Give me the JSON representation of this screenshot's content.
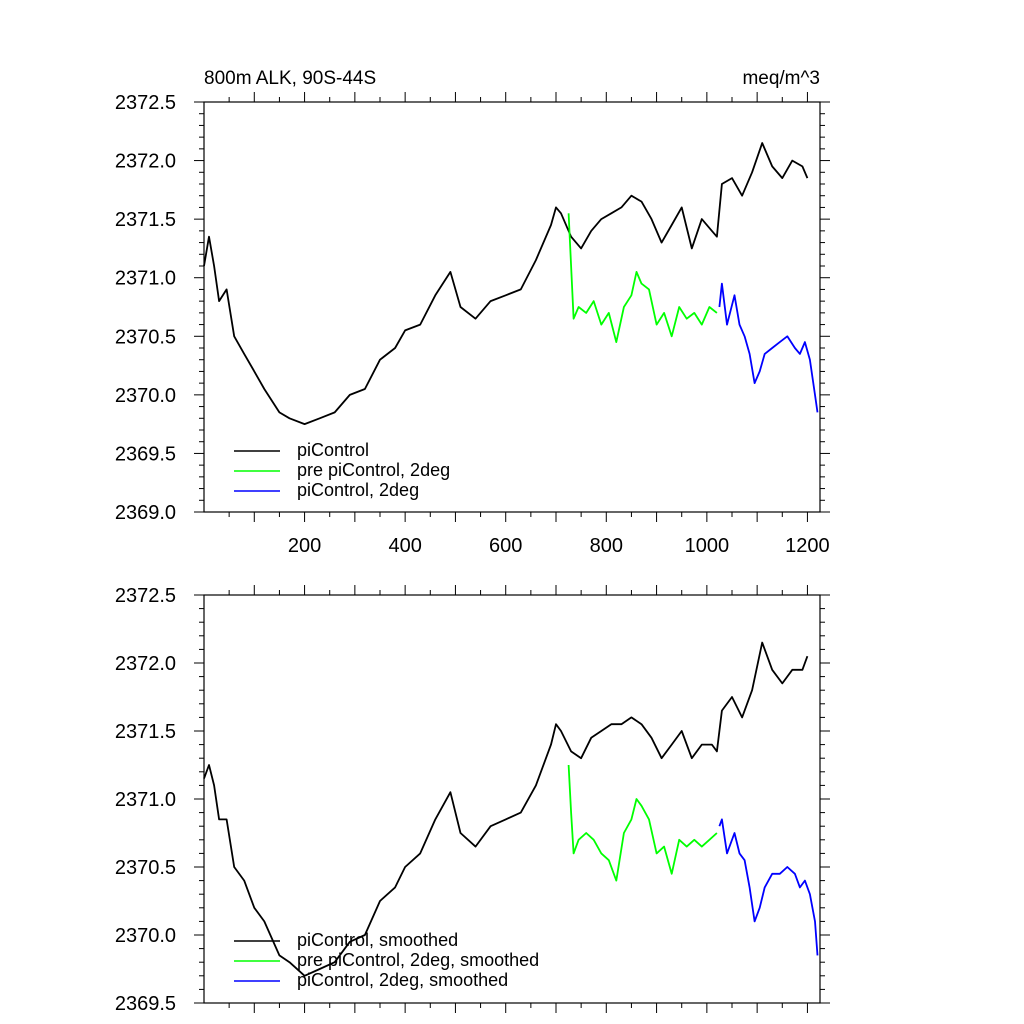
{
  "chart_data": [
    {
      "type": "line",
      "title": "800m ALK, 90S-44S",
      "units": "meq/m^3",
      "xlim": [
        0,
        1225
      ],
      "ylim": [
        2369.0,
        2372.5
      ],
      "xticks": [
        200,
        400,
        600,
        800,
        1000,
        1200
      ],
      "xtick_labels": [
        "200",
        "400",
        "600",
        "800",
        "1000",
        "1200"
      ],
      "yticks": [
        2369.0,
        2369.5,
        2370.0,
        2370.5,
        2371.0,
        2371.5,
        2372.0,
        2372.5
      ],
      "ytick_labels": [
        "2369.0",
        "2369.5",
        "2370.0",
        "2370.5",
        "2371.0",
        "2371.5",
        "2372.0",
        "2372.5"
      ],
      "legend_position": "bottom-left",
      "series": [
        {
          "name": "piControl",
          "color": "#000000",
          "x": [
            0,
            10,
            20,
            30,
            45,
            60,
            80,
            100,
            120,
            150,
            170,
            200,
            230,
            260,
            290,
            320,
            350,
            380,
            400,
            430,
            460,
            490,
            510,
            540,
            570,
            600,
            630,
            660,
            690,
            700,
            710,
            730,
            750,
            770,
            790,
            810,
            830,
            850,
            870,
            890,
            910,
            930,
            950,
            970,
            990,
            1010,
            1020,
            1030,
            1050,
            1070,
            1090,
            1110,
            1130,
            1150,
            1170,
            1190,
            1200
          ],
          "y": [
            2371.1,
            2371.35,
            2371.1,
            2370.8,
            2370.9,
            2370.5,
            2370.35,
            2370.2,
            2370.05,
            2369.85,
            2369.8,
            2369.75,
            2369.8,
            2369.85,
            2370.0,
            2370.05,
            2370.3,
            2370.4,
            2370.55,
            2370.6,
            2370.85,
            2371.05,
            2370.75,
            2370.65,
            2370.8,
            2370.85,
            2370.9,
            2371.15,
            2371.45,
            2371.6,
            2371.55,
            2371.35,
            2371.25,
            2371.4,
            2371.5,
            2371.55,
            2371.6,
            2371.7,
            2371.65,
            2371.5,
            2371.3,
            2371.45,
            2371.6,
            2371.25,
            2371.5,
            2371.4,
            2371.35,
            2371.8,
            2371.85,
            2371.7,
            2371.9,
            2372.15,
            2371.95,
            2371.85,
            2372.0,
            2371.95,
            2371.85
          ]
        },
        {
          "name": "pre piControl, 2deg",
          "color": "#00ff00",
          "x": [
            725,
            730,
            735,
            745,
            760,
            775,
            790,
            805,
            820,
            835,
            850,
            860,
            870,
            885,
            900,
            915,
            930,
            945,
            960,
            975,
            990,
            1005,
            1020
          ],
          "y": [
            2371.55,
            2371.1,
            2370.65,
            2370.75,
            2370.7,
            2370.8,
            2370.6,
            2370.7,
            2370.45,
            2370.75,
            2370.85,
            2371.05,
            2370.95,
            2370.9,
            2370.6,
            2370.7,
            2370.5,
            2370.75,
            2370.65,
            2370.7,
            2370.6,
            2370.75,
            2370.7
          ]
        },
        {
          "name": "piControl, 2deg",
          "color": "#0000ff",
          "x": [
            1025,
            1030,
            1040,
            1055,
            1065,
            1075,
            1085,
            1095,
            1105,
            1115,
            1130,
            1145,
            1160,
            1175,
            1185,
            1195,
            1205,
            1215,
            1220
          ],
          "y": [
            2370.75,
            2370.95,
            2370.6,
            2370.85,
            2370.6,
            2370.5,
            2370.35,
            2370.1,
            2370.2,
            2370.35,
            2370.4,
            2370.45,
            2370.5,
            2370.4,
            2370.35,
            2370.45,
            2370.3,
            2370.0,
            2369.85
          ]
        }
      ]
    },
    {
      "type": "line",
      "title": "",
      "units": "",
      "xlim": [
        0,
        1225
      ],
      "ylim": [
        2369.5,
        2372.5
      ],
      "xticks": [
        200,
        400,
        600,
        800,
        1000,
        1200
      ],
      "yticks": [
        2369.5,
        2370.0,
        2370.5,
        2371.0,
        2371.5,
        2372.0,
        2372.5
      ],
      "ytick_labels": [
        "2369.5",
        "2370.0",
        "2370.5",
        "2371.0",
        "2371.5",
        "2372.0",
        "2372.5"
      ],
      "legend_position": "bottom-left",
      "series": [
        {
          "name": "piControl, smoothed",
          "color": "#000000",
          "x": [
            0,
            10,
            20,
            30,
            45,
            60,
            80,
            100,
            120,
            150,
            170,
            200,
            230,
            260,
            290,
            320,
            350,
            380,
            400,
            430,
            460,
            490,
            510,
            540,
            570,
            600,
            630,
            660,
            690,
            700,
            710,
            730,
            750,
            770,
            790,
            810,
            830,
            850,
            870,
            890,
            910,
            930,
            950,
            970,
            990,
            1010,
            1020,
            1030,
            1050,
            1070,
            1090,
            1110,
            1130,
            1150,
            1170,
            1190,
            1200
          ],
          "y": [
            2371.15,
            2371.25,
            2371.1,
            2370.85,
            2370.85,
            2370.5,
            2370.4,
            2370.2,
            2370.1,
            2369.85,
            2369.8,
            2369.7,
            2369.75,
            2369.8,
            2369.95,
            2370.0,
            2370.25,
            2370.35,
            2370.5,
            2370.6,
            2370.85,
            2371.05,
            2370.75,
            2370.65,
            2370.8,
            2370.85,
            2370.9,
            2371.1,
            2371.4,
            2371.55,
            2371.5,
            2371.35,
            2371.3,
            2371.45,
            2371.5,
            2371.55,
            2371.55,
            2371.6,
            2371.55,
            2371.45,
            2371.3,
            2371.4,
            2371.5,
            2371.3,
            2371.4,
            2371.4,
            2371.35,
            2371.65,
            2371.75,
            2371.6,
            2371.8,
            2372.15,
            2371.95,
            2371.85,
            2371.95,
            2371.95,
            2372.05
          ]
        },
        {
          "name": "pre piControl, 2deg, smoothed",
          "color": "#00ff00",
          "x": [
            725,
            730,
            735,
            745,
            760,
            775,
            790,
            805,
            820,
            835,
            850,
            860,
            870,
            885,
            900,
            915,
            930,
            945,
            960,
            975,
            990,
            1005,
            1020
          ],
          "y": [
            2371.25,
            2370.9,
            2370.6,
            2370.7,
            2370.75,
            2370.7,
            2370.6,
            2370.55,
            2370.4,
            2370.75,
            2370.85,
            2371.0,
            2370.95,
            2370.85,
            2370.6,
            2370.65,
            2370.45,
            2370.7,
            2370.65,
            2370.7,
            2370.65,
            2370.7,
            2370.75
          ]
        },
        {
          "name": "piControl, 2deg, smoothed",
          "color": "#0000ff",
          "x": [
            1025,
            1030,
            1040,
            1055,
            1065,
            1075,
            1085,
            1095,
            1105,
            1115,
            1130,
            1145,
            1160,
            1175,
            1185,
            1195,
            1205,
            1215,
            1220
          ],
          "y": [
            2370.8,
            2370.85,
            2370.6,
            2370.75,
            2370.6,
            2370.55,
            2370.35,
            2370.1,
            2370.2,
            2370.35,
            2370.45,
            2370.45,
            2370.5,
            2370.45,
            2370.35,
            2370.4,
            2370.3,
            2370.1,
            2369.85
          ]
        }
      ]
    }
  ]
}
